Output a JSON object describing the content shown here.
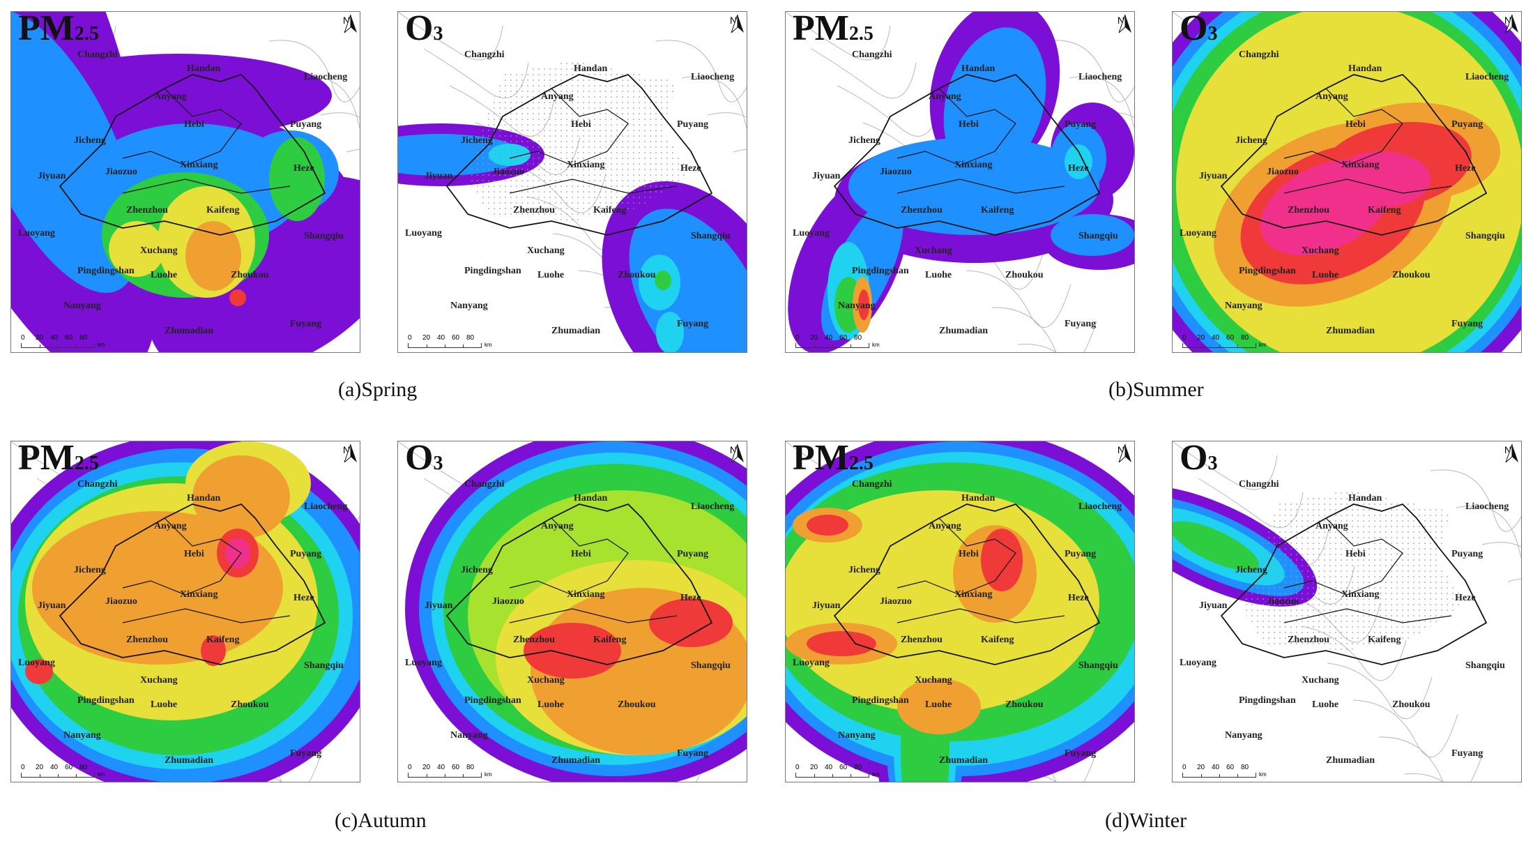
{
  "colors": {
    "purple": "#7b0fd6",
    "blue": "#1e90ff",
    "cyan": "#1fd2f0",
    "green": "#2ecc40",
    "lightgreen": "#a6e22e",
    "yellow": "#e8e03a",
    "orange": "#f0a030",
    "red": "#f03a3a",
    "magenta": "#f0308a"
  },
  "icons": {
    "north_arrow": "north-arrow-icon"
  },
  "north_label": "N",
  "scale": {
    "ticks": [
      "0",
      "20",
      "40",
      "60",
      "80"
    ],
    "unit": "km"
  },
  "captions": {
    "spring": "(a)Spring",
    "summer": "(b)Summer",
    "autumn": "(c)Autumn",
    "winter": "(d)Winter"
  },
  "panels": [
    {
      "title_main": "PM",
      "title_sub": "2.5",
      "season": "Spring"
    },
    {
      "title_main": "O",
      "title_sub": "3",
      "season": "Spring"
    },
    {
      "title_main": "PM",
      "title_sub": "2.5",
      "season": "Summer"
    },
    {
      "title_main": "O",
      "title_sub": "3",
      "season": "Summer"
    },
    {
      "title_main": "PM",
      "title_sub": "2.5",
      "season": "Autumn"
    },
    {
      "title_main": "O",
      "title_sub": "3",
      "season": "Autumn"
    },
    {
      "title_main": "PM",
      "title_sub": "2.5",
      "season": "Winter"
    },
    {
      "title_main": "O",
      "title_sub": "3",
      "season": "Winter"
    }
  ],
  "cities": [
    "Changzhi",
    "Handan",
    "Liaocheng",
    "Anyang",
    "Hebi",
    "Puyang",
    "Jicheng",
    "Xinxiang",
    "Heze",
    "Jiyuan",
    "Jiaozuo",
    "Zhenzhou",
    "Kaifeng",
    "Luoyang",
    "Shangqiu",
    "Xuchang",
    "Pingdingshan",
    "Luohe",
    "Zhoukou",
    "Nanyang",
    "Fuyang",
    "Zhumadian"
  ]
}
